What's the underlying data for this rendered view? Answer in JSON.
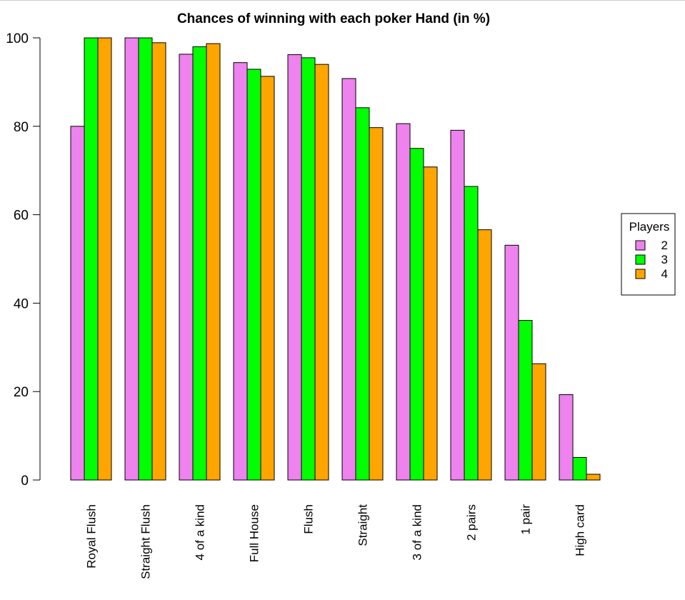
{
  "chart_data": {
    "type": "bar",
    "title": "Chances of winning with each poker Hand (in %)",
    "xlabel": "",
    "ylabel": "",
    "ylim": [
      0,
      100
    ],
    "yticks": [
      0,
      20,
      40,
      60,
      80,
      100
    ],
    "grid": false,
    "categories": [
      "Royal Flush",
      "Straight Flush",
      "4 of a kind",
      "Full House",
      "Flush",
      "Straight",
      "3 of a kind",
      "2 pairs",
      "1 pair",
      "High card"
    ],
    "series": [
      {
        "name": "2",
        "color": "#ee82ee",
        "values": [
          80,
          100,
          96.3,
          94.4,
          96.2,
          90.8,
          80.6,
          79.1,
          53.1,
          19.3
        ]
      },
      {
        "name": "3",
        "color": "#00ff00",
        "values": [
          100,
          100,
          98,
          92.9,
          95.5,
          84.2,
          75,
          66.4,
          36.1,
          5.1
        ]
      },
      {
        "name": "4",
        "color": "#ffa500",
        "values": [
          100,
          98.9,
          98.7,
          91.3,
          94,
          79.7,
          70.8,
          56.6,
          26.3,
          1.3
        ]
      }
    ],
    "legend": {
      "title": "Players",
      "position": "right"
    }
  }
}
